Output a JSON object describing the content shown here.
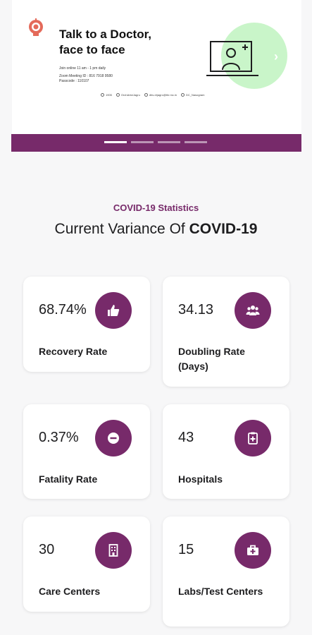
{
  "banner": {
    "title_line1": "Talk to a Doctor,",
    "title_line2": "face to face",
    "join_text": "Join online 11 am - 1 pm daily",
    "meeting_id": "Zoom Meeting ID : 816 7918 9580",
    "passcode": "Passcode : 110107",
    "contacts": [
      "1905",
      "OrchArkeJagru",
      "dhs.drjagro@thr.mc.in",
      "DC_Nasogram"
    ],
    "accent_green": "#c9f5c9"
  },
  "carousel": {
    "bar_color": "#772a6a",
    "slide_count": 4,
    "active_index": 0
  },
  "stats_section": {
    "label": "COVID-19 Statistics",
    "title_prefix": "Current Variance Of ",
    "title_bold": "COVID-19"
  },
  "cards": [
    {
      "value": "68.74%",
      "label": "Recovery Rate",
      "icon": "thumbs-up-icon"
    },
    {
      "value": "34.13",
      "label": "Doubling Rate (Days)",
      "icon": "users-group-icon"
    },
    {
      "value": "0.37%",
      "label": "Fatality Rate",
      "icon": "minus-circle-icon"
    },
    {
      "value": "43",
      "label": "Hospitals",
      "icon": "clipboard-icon"
    },
    {
      "value": "30",
      "label": "Care Centers",
      "icon": "building-icon"
    },
    {
      "value": "15",
      "label": "Labs/Test Centers",
      "icon": "medical-kit-icon"
    }
  ],
  "colors": {
    "primary": "#772a6a",
    "background": "#f7f7f8",
    "card": "#ffffff"
  }
}
